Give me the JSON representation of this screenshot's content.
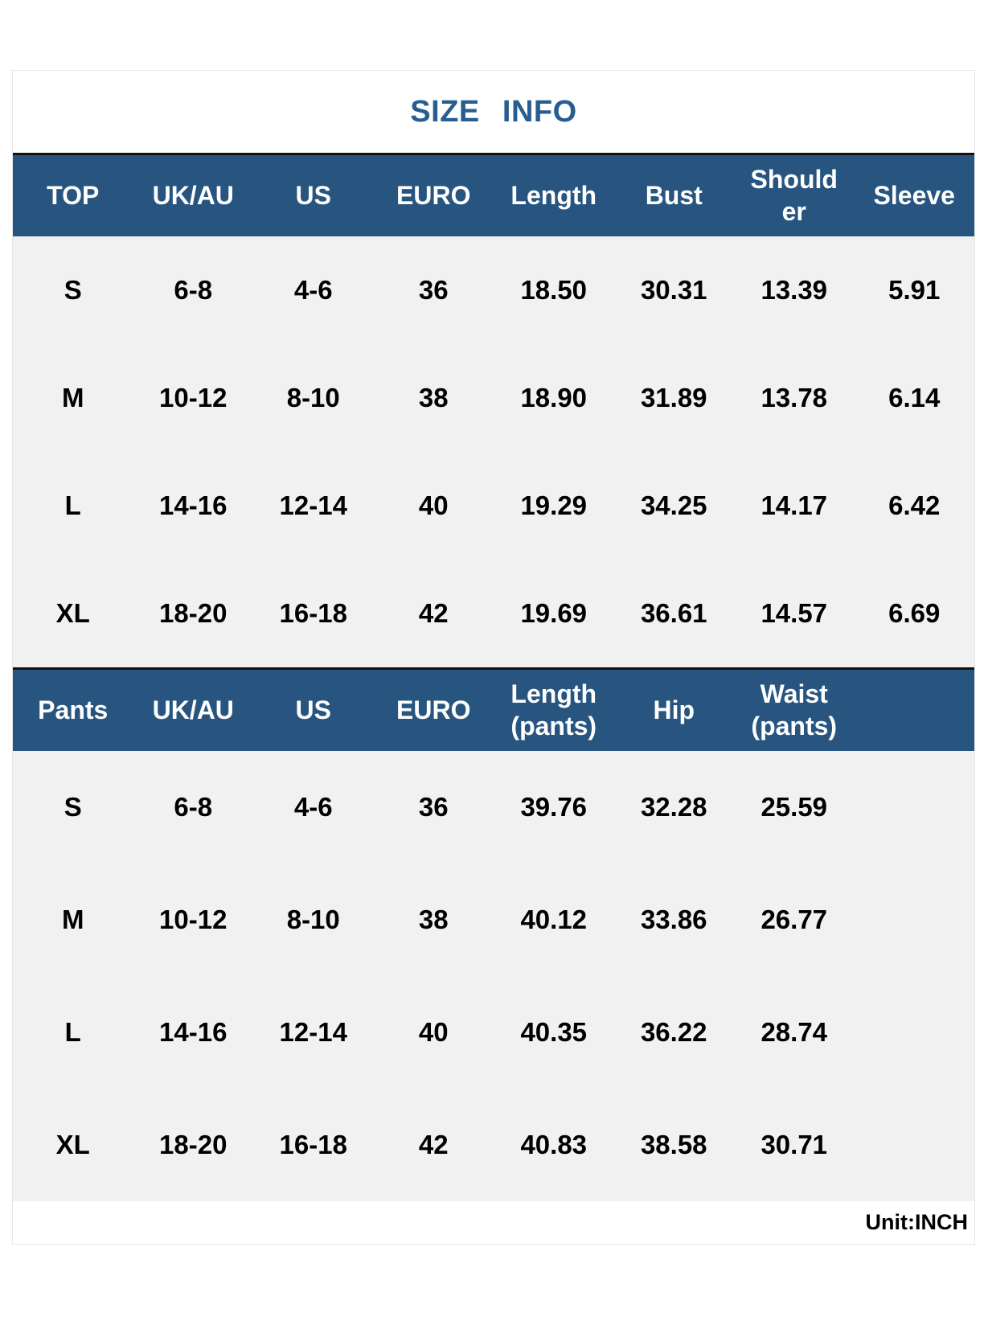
{
  "title": "SIZE INFO",
  "unit_note": "Unit:INCH",
  "colors": {
    "header_bg": "#275580",
    "header_text": "#ffffff",
    "title_text": "#275d8f",
    "body_bg": "#f1f1f1",
    "body_text": "#000000",
    "divider": "#111111"
  },
  "top_table": {
    "headers": [
      "TOP",
      "UK/AU",
      "US",
      "EURO",
      "Length",
      "Bust",
      "Shoulder",
      "Sleeve"
    ],
    "rows": [
      [
        "S",
        "6-8",
        "4-6",
        "36",
        "18.50",
        "30.31",
        "13.39",
        "5.91"
      ],
      [
        "M",
        "10-12",
        "8-10",
        "38",
        "18.90",
        "31.89",
        "13.78",
        "6.14"
      ],
      [
        "L",
        "14-16",
        "12-14",
        "40",
        "19.29",
        "34.25",
        "14.17",
        "6.42"
      ],
      [
        "XL",
        "18-20",
        "16-18",
        "42",
        "19.69",
        "36.61",
        "14.57",
        "6.69"
      ]
    ]
  },
  "pants_table": {
    "headers": [
      "Pants",
      "UK/AU",
      "US",
      "EURO",
      "Length (pants)",
      "Hip",
      "Waist (pants)",
      ""
    ],
    "rows": [
      [
        "S",
        "6-8",
        "4-6",
        "36",
        "39.76",
        "32.28",
        "25.59",
        ""
      ],
      [
        "M",
        "10-12",
        "8-10",
        "38",
        "40.12",
        "33.86",
        "26.77",
        ""
      ],
      [
        "L",
        "14-16",
        "12-14",
        "40",
        "40.35",
        "36.22",
        "28.74",
        ""
      ],
      [
        "XL",
        "18-20",
        "16-18",
        "42",
        "40.83",
        "38.58",
        "30.71",
        ""
      ]
    ]
  }
}
